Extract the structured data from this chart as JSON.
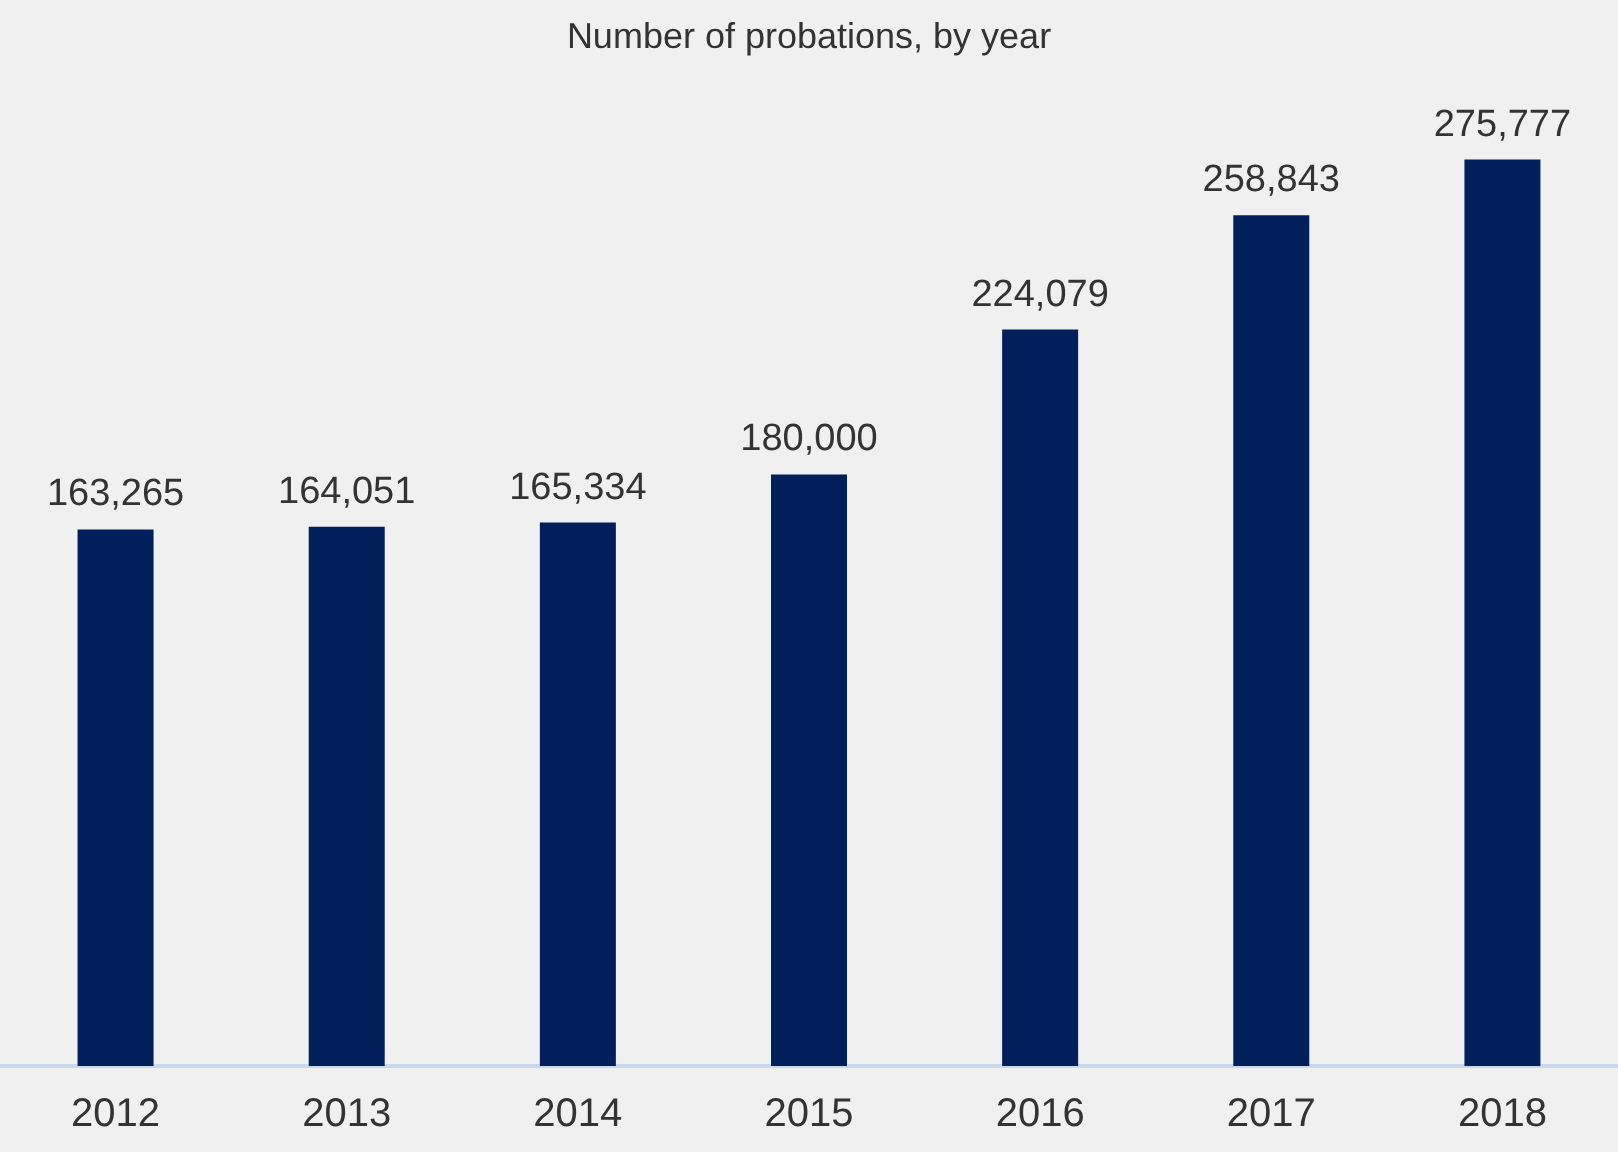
{
  "chart_data": {
    "type": "bar",
    "title": "Number of probations, by year",
    "categories": [
      "2012",
      "2013",
      "2014",
      "2015",
      "2016",
      "2017",
      "2018"
    ],
    "values": [
      163265,
      164051,
      165334,
      180000,
      224079,
      258843,
      275777
    ],
    "value_labels": [
      "163,265",
      "164,051",
      "165,334",
      "180,000",
      "224,079",
      "258,843",
      "275,777"
    ],
    "color": "#001f5b"
  }
}
